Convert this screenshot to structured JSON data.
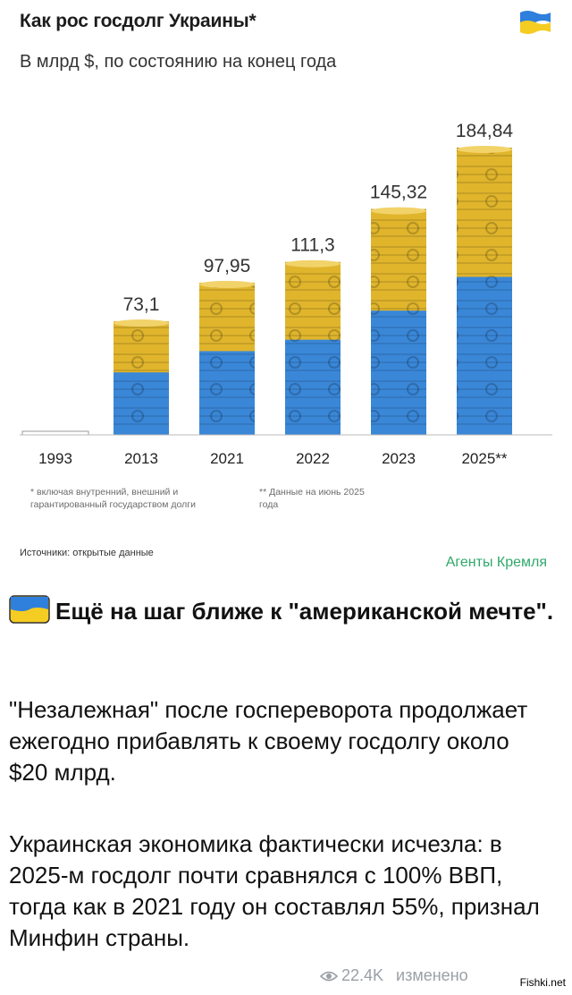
{
  "chart_data": {
    "type": "bar",
    "title": "Как рос госдолг Украины*",
    "subtitle": "В млрд $, по состоянию на конец года",
    "categories": [
      "1993",
      "2013",
      "2021",
      "2022",
      "2023",
      "2025**"
    ],
    "values": [
      1.5,
      73.1,
      97.95,
      111.3,
      145.32,
      184.84
    ],
    "value_labels": [
      "",
      "73,1",
      "97,95",
      "111,3",
      "145,32",
      "184,84"
    ],
    "ylim": [
      0,
      190
    ],
    "grid": false,
    "legend": "none",
    "footnote_left": "* включая внутренний, внешний и гарантированный государством долги",
    "footnote_right": "** Данные на июнь 2025 года",
    "source": "Источники: открытые данные",
    "colors": {
      "top": "#e0b52c",
      "bottom": "#3a87d8",
      "label": "#333333"
    }
  },
  "watermark": "Агенты Кремля",
  "post": {
    "heading": "Ещё на шаг ближе к \"американской мечте\".",
    "para1": "\"Незалежная\" после госпереворота продолжает ежегодно прибавлять к своему госдолгу около $20 млрд.",
    "para2": "Украинская экономика фактически исчезла: в 2025-м госдолг почти сравнялся с 100% ВВП, тогда как в 2021 году он составлял 55%, признал Минфин страны.",
    "views": "22.4K",
    "edited": "изменено",
    "site": "Fishki.net"
  },
  "icons": {
    "flag": "ukraine-flag-icon",
    "views": "eye-icon"
  }
}
